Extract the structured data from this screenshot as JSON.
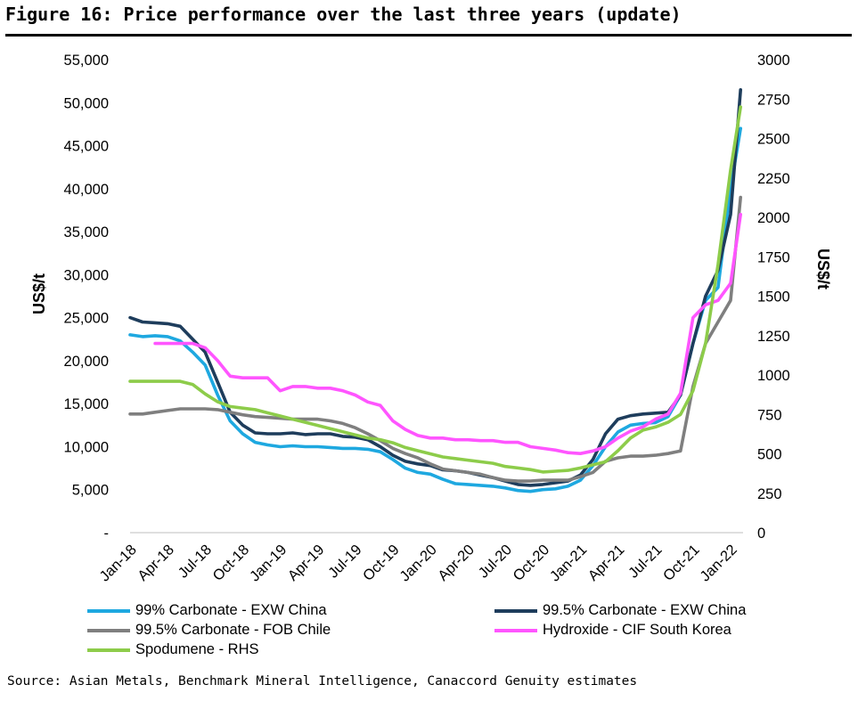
{
  "figure": {
    "title": "Figure 16: Price performance over the last three years (update)",
    "source": "Source: Asian Metals, Benchmark Mineral Intelligence, Canaccord Genuity estimates"
  },
  "chart_data": {
    "type": "line",
    "title": "Figure 16: Price performance over the last three years (update)",
    "x_tick_labels": [
      "Jan-18",
      "Apr-18",
      "Jul-18",
      "Oct-18",
      "Jan-19",
      "Apr-19",
      "Jul-19",
      "Oct-19",
      "Jan-20",
      "Apr-20",
      "Jul-20",
      "Oct-20",
      "Jan-21",
      "Apr-21",
      "Jul-21",
      "Oct-21",
      "Jan-22"
    ],
    "ylabel_left": "US$/t",
    "ylabel_right": "US$/t",
    "y_left_ticks": [
      "55,000",
      "50,000",
      "45,000",
      "40,000",
      "35,000",
      "30,000",
      "25,000",
      "20,000",
      "15,000",
      "10,000",
      "5,000",
      "-"
    ],
    "y_right_ticks": [
      "3000",
      "2750",
      "2500",
      "2250",
      "2000",
      "1750",
      "1500",
      "1250",
      "1000",
      "750",
      "500",
      "250",
      "0"
    ],
    "ylim_left": [
      0,
      55000
    ],
    "ylim_right": [
      0,
      3000
    ],
    "xlim_months": [
      0,
      49
    ],
    "x_unit": "months since Jan-18",
    "series": [
      {
        "name": "99% Carbonate - EXW China",
        "axis": "left",
        "color": "#1ea8e0",
        "points": [
          [
            0,
            23000
          ],
          [
            1,
            22800
          ],
          [
            2,
            22900
          ],
          [
            3,
            22800
          ],
          [
            4,
            22300
          ],
          [
            5,
            21000
          ],
          [
            6,
            19500
          ],
          [
            7,
            16000
          ],
          [
            8,
            13000
          ],
          [
            9,
            11500
          ],
          [
            10,
            10500
          ],
          [
            11,
            10200
          ],
          [
            12,
            10000
          ],
          [
            13,
            10100
          ],
          [
            14,
            10000
          ],
          [
            15,
            10000
          ],
          [
            16,
            9900
          ],
          [
            17,
            9800
          ],
          [
            18,
            9800
          ],
          [
            19,
            9700
          ],
          [
            20,
            9400
          ],
          [
            21,
            8500
          ],
          [
            22,
            7500
          ],
          [
            23,
            7000
          ],
          [
            24,
            6800
          ],
          [
            25,
            6200
          ],
          [
            26,
            5700
          ],
          [
            27,
            5600
          ],
          [
            28,
            5500
          ],
          [
            29,
            5400
          ],
          [
            30,
            5200
          ],
          [
            31,
            4900
          ],
          [
            32,
            4800
          ],
          [
            33,
            5000
          ],
          [
            34,
            5100
          ],
          [
            35,
            5400
          ],
          [
            36,
            6100
          ],
          [
            37,
            7800
          ],
          [
            38,
            10000
          ],
          [
            39,
            11700
          ],
          [
            40,
            12500
          ],
          [
            41,
            12700
          ],
          [
            42,
            12800
          ],
          [
            43,
            13500
          ],
          [
            44,
            16000
          ],
          [
            45,
            22000
          ],
          [
            46,
            27000
          ],
          [
            47,
            28500
          ],
          [
            48,
            40000
          ],
          [
            48.8,
            47000
          ]
        ]
      },
      {
        "name": "99.5% Carbonate - EXW China",
        "axis": "left",
        "color": "#1e3d5c",
        "points": [
          [
            0,
            25000
          ],
          [
            1,
            24500
          ],
          [
            2,
            24400
          ],
          [
            3,
            24300
          ],
          [
            4,
            24000
          ],
          [
            5,
            22500
          ],
          [
            6,
            21000
          ],
          [
            7,
            17500
          ],
          [
            8,
            14000
          ],
          [
            9,
            12500
          ],
          [
            10,
            11600
          ],
          [
            11,
            11500
          ],
          [
            12,
            11500
          ],
          [
            13,
            11600
          ],
          [
            14,
            11400
          ],
          [
            15,
            11500
          ],
          [
            16,
            11500
          ],
          [
            17,
            11200
          ],
          [
            18,
            11100
          ],
          [
            19,
            10800
          ],
          [
            20,
            10000
          ],
          [
            21,
            9000
          ],
          [
            22,
            8300
          ],
          [
            23,
            8000
          ],
          [
            24,
            7800
          ],
          [
            25,
            7300
          ],
          [
            26,
            7200
          ],
          [
            27,
            7000
          ],
          [
            28,
            6700
          ],
          [
            29,
            6400
          ],
          [
            30,
            6000
          ],
          [
            31,
            5600
          ],
          [
            32,
            5500
          ],
          [
            33,
            5600
          ],
          [
            34,
            5800
          ],
          [
            35,
            6000
          ],
          [
            36,
            6700
          ],
          [
            37,
            8500
          ],
          [
            38,
            11500
          ],
          [
            39,
            13200
          ],
          [
            40,
            13600
          ],
          [
            41,
            13800
          ],
          [
            42,
            13900
          ],
          [
            43,
            14000
          ],
          [
            44,
            16000
          ],
          [
            45,
            22000
          ],
          [
            46,
            27500
          ],
          [
            47,
            30500
          ],
          [
            48,
            37000
          ],
          [
            48.8,
            51500
          ]
        ]
      },
      {
        "name": "99.5% Carbonate - FOB Chile",
        "axis": "left",
        "color": "#7f7f7f",
        "points": [
          [
            0,
            13800
          ],
          [
            1,
            13800
          ],
          [
            2,
            14000
          ],
          [
            3,
            14200
          ],
          [
            4,
            14400
          ],
          [
            5,
            14400
          ],
          [
            6,
            14400
          ],
          [
            7,
            14300
          ],
          [
            8,
            14000
          ],
          [
            9,
            13700
          ],
          [
            10,
            13500
          ],
          [
            11,
            13400
          ],
          [
            12,
            13300
          ],
          [
            13,
            13200
          ],
          [
            14,
            13200
          ],
          [
            15,
            13200
          ],
          [
            16,
            13000
          ],
          [
            17,
            12700
          ],
          [
            18,
            12200
          ],
          [
            19,
            11500
          ],
          [
            20,
            10700
          ],
          [
            21,
            9800
          ],
          [
            22,
            9200
          ],
          [
            23,
            8700
          ],
          [
            24,
            8000
          ],
          [
            25,
            7400
          ],
          [
            26,
            7200
          ],
          [
            27,
            7000
          ],
          [
            28,
            6800
          ],
          [
            29,
            6400
          ],
          [
            30,
            6100
          ],
          [
            31,
            6000
          ],
          [
            32,
            6000
          ],
          [
            33,
            6100
          ],
          [
            34,
            6100
          ],
          [
            35,
            6100
          ],
          [
            36,
            6500
          ],
          [
            37,
            7000
          ],
          [
            38,
            8300
          ],
          [
            39,
            8700
          ],
          [
            40,
            8900
          ],
          [
            41,
            8900
          ],
          [
            42,
            9000
          ],
          [
            43,
            9200
          ],
          [
            44,
            9500
          ],
          [
            45,
            17000
          ],
          [
            46,
            22000
          ],
          [
            47,
            24500
          ],
          [
            48,
            27000
          ],
          [
            48.8,
            39000
          ]
        ]
      },
      {
        "name": "Hydroxide - CIF South Korea",
        "axis": "left",
        "color": "#ff55ff",
        "points": [
          [
            2,
            22000
          ],
          [
            3,
            22000
          ],
          [
            4,
            22000
          ],
          [
            5,
            22000
          ],
          [
            6,
            21500
          ],
          [
            7,
            20000
          ],
          [
            8,
            18200
          ],
          [
            9,
            18000
          ],
          [
            10,
            18000
          ],
          [
            11,
            18000
          ],
          [
            12,
            16500
          ],
          [
            13,
            17000
          ],
          [
            14,
            17000
          ],
          [
            15,
            16800
          ],
          [
            16,
            16800
          ],
          [
            17,
            16500
          ],
          [
            18,
            16000
          ],
          [
            19,
            15200
          ],
          [
            20,
            14800
          ],
          [
            21,
            13000
          ],
          [
            22,
            12000
          ],
          [
            23,
            11300
          ],
          [
            24,
            11000
          ],
          [
            25,
            11000
          ],
          [
            26,
            10800
          ],
          [
            27,
            10800
          ],
          [
            28,
            10700
          ],
          [
            29,
            10700
          ],
          [
            30,
            10500
          ],
          [
            31,
            10500
          ],
          [
            32,
            10000
          ],
          [
            33,
            9800
          ],
          [
            34,
            9600
          ],
          [
            35,
            9300
          ],
          [
            36,
            9200
          ],
          [
            37,
            9500
          ],
          [
            38,
            10000
          ],
          [
            39,
            11000
          ],
          [
            40,
            11800
          ],
          [
            41,
            12300
          ],
          [
            42,
            13200
          ],
          [
            43,
            13800
          ],
          [
            44,
            16200
          ],
          [
            45,
            25000
          ],
          [
            46,
            26500
          ],
          [
            47,
            27000
          ],
          [
            48,
            29000
          ],
          [
            48.8,
            37000
          ]
        ]
      },
      {
        "name": "Spodumene - RHS",
        "axis": "right",
        "color": "#8dcc4a",
        "points": [
          [
            0,
            960
          ],
          [
            1,
            960
          ],
          [
            2,
            960
          ],
          [
            3,
            960
          ],
          [
            4,
            960
          ],
          [
            5,
            940
          ],
          [
            6,
            880
          ],
          [
            7,
            830
          ],
          [
            8,
            800
          ],
          [
            9,
            790
          ],
          [
            10,
            780
          ],
          [
            11,
            760
          ],
          [
            12,
            740
          ],
          [
            13,
            720
          ],
          [
            14,
            700
          ],
          [
            15,
            680
          ],
          [
            16,
            660
          ],
          [
            17,
            640
          ],
          [
            18,
            620
          ],
          [
            19,
            600
          ],
          [
            20,
            590
          ],
          [
            21,
            570
          ],
          [
            22,
            540
          ],
          [
            23,
            520
          ],
          [
            24,
            500
          ],
          [
            25,
            480
          ],
          [
            26,
            470
          ],
          [
            27,
            460
          ],
          [
            28,
            450
          ],
          [
            29,
            440
          ],
          [
            30,
            420
          ],
          [
            31,
            410
          ],
          [
            32,
            400
          ],
          [
            33,
            385
          ],
          [
            34,
            390
          ],
          [
            35,
            395
          ],
          [
            36,
            410
          ],
          [
            37,
            430
          ],
          [
            38,
            450
          ],
          [
            39,
            520
          ],
          [
            40,
            600
          ],
          [
            41,
            650
          ],
          [
            42,
            670
          ],
          [
            43,
            700
          ],
          [
            44,
            750
          ],
          [
            45,
            900
          ],
          [
            46,
            1200
          ],
          [
            47,
            1700
          ],
          [
            48,
            2300
          ],
          [
            48.8,
            2700
          ]
        ]
      }
    ],
    "legend": [
      {
        "label": "99% Carbonate - EXW China",
        "color": "#1ea8e0"
      },
      {
        "label": "99.5% Carbonate - EXW China",
        "color": "#1e3d5c"
      },
      {
        "label": "99.5% Carbonate - FOB Chile",
        "color": "#7f7f7f"
      },
      {
        "label": "Hydroxide - CIF South Korea",
        "color": "#ff55ff"
      },
      {
        "label": "Spodumene - RHS",
        "color": "#8dcc4a"
      }
    ]
  }
}
